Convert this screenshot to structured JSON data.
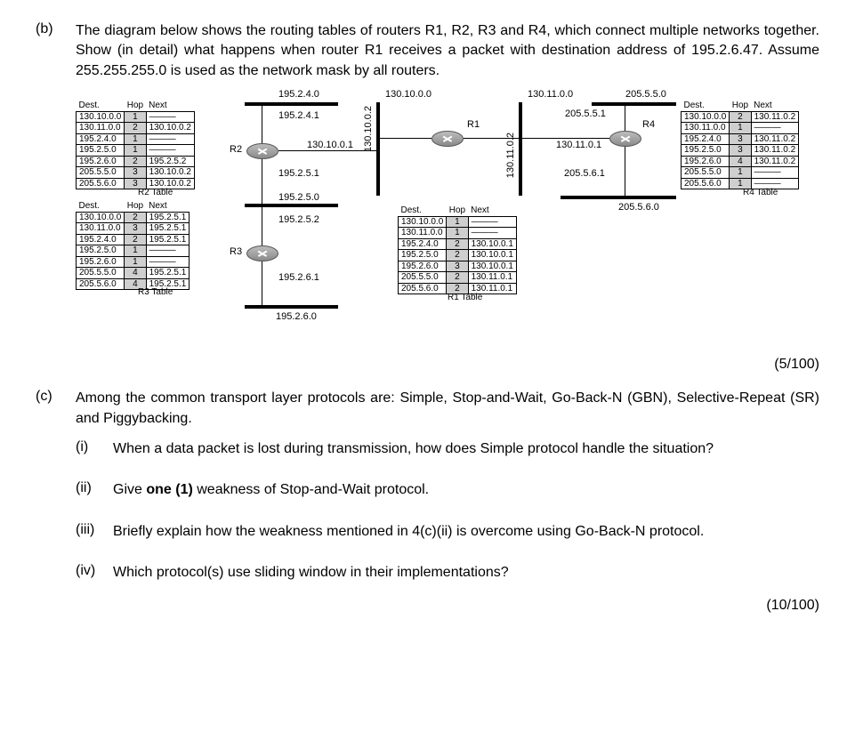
{
  "q_b": {
    "label": "(b)",
    "text": "The diagram below shows the routing tables of routers R1, R2, R3 and R4, which connect multiple networks together. Show (in detail) what happens when router R1 receives a packet with destination address of 195.2.6.47. Assume 255.255.255.0 is used as the network mask by all routers.",
    "marks": "(5/100)"
  },
  "q_c": {
    "label": "(c)",
    "intro": "Among the common transport layer protocols are: Simple, Stop-and-Wait, Go-Back-N (GBN), Selective-Repeat (SR) and Piggybacking.",
    "i": {
      "label": "(i)",
      "text": "When a data packet is lost during transmission, how does Simple protocol handle the situation?"
    },
    "ii": {
      "label": "(ii)",
      "text_pre": "Give ",
      "text_b": "one (1)",
      "text_post": " weakness of Stop-and-Wait protocol."
    },
    "iii": {
      "label": "(iii)",
      "text": "Briefly explain how the weakness mentioned in 4(c)(ii) is overcome using Go-Back-N protocol."
    },
    "iv": {
      "label": "(iv)",
      "text": "Which protocol(s) use sliding window in their implementations?"
    },
    "marks": "(10/100)"
  },
  "diagram": {
    "table_headers": {
      "dest": "Dest.",
      "hop": "Hop",
      "next": "Next"
    },
    "r2_table": {
      "caption": "R2 Table",
      "rows": [
        {
          "d": "130.10.0.0",
          "h": "1",
          "n": "———"
        },
        {
          "d": "130.11.0.0",
          "h": "2",
          "n": "130.10.0.2"
        },
        {
          "d": "195.2.4.0",
          "h": "1",
          "n": "———"
        },
        {
          "d": "195.2.5.0",
          "h": "1",
          "n": "———"
        },
        {
          "d": "195.2.6.0",
          "h": "2",
          "n": "195.2.5.2"
        },
        {
          "d": "205.5.5.0",
          "h": "3",
          "n": "130.10.0.2"
        },
        {
          "d": "205.5.6.0",
          "h": "3",
          "n": "130.10.0.2"
        }
      ]
    },
    "r3_table": {
      "caption": "R3 Table",
      "rows": [
        {
          "d": "130.10.0.0",
          "h": "2",
          "n": "195.2.5.1"
        },
        {
          "d": "130.11.0.0",
          "h": "3",
          "n": "195.2.5.1"
        },
        {
          "d": "195.2.4.0",
          "h": "2",
          "n": "195.2.5.1"
        },
        {
          "d": "195.2.5.0",
          "h": "1",
          "n": "———"
        },
        {
          "d": "195.2.6.0",
          "h": "1",
          "n": "———"
        },
        {
          "d": "205.5.5.0",
          "h": "4",
          "n": "195.2.5.1"
        },
        {
          "d": "205.5.6.0",
          "h": "4",
          "n": "195.2.5.1"
        }
      ]
    },
    "r1_table": {
      "caption": "R1 Table",
      "rows": [
        {
          "d": "130.10.0.0",
          "h": "1",
          "n": "———"
        },
        {
          "d": "130.11.0.0",
          "h": "1",
          "n": "———"
        },
        {
          "d": "195.2.4.0",
          "h": "2",
          "n": "130.10.0.1"
        },
        {
          "d": "195.2.5.0",
          "h": "2",
          "n": "130.10.0.1"
        },
        {
          "d": "195.2.6.0",
          "h": "3",
          "n": "130.10.0.1"
        },
        {
          "d": "205.5.5.0",
          "h": "2",
          "n": "130.11.0.1"
        },
        {
          "d": "205.5.6.0",
          "h": "2",
          "n": "130.11.0.1"
        }
      ]
    },
    "r4_table": {
      "caption": "R4 Table",
      "rows": [
        {
          "d": "130.10.0.0",
          "h": "2",
          "n": "130.11.0.2"
        },
        {
          "d": "130.11.0.0",
          "h": "1",
          "n": "———"
        },
        {
          "d": "195.2.4.0",
          "h": "3",
          "n": "130.11.0.2"
        },
        {
          "d": "195.2.5.0",
          "h": "3",
          "n": "130.11.0.2"
        },
        {
          "d": "195.2.6.0",
          "h": "4",
          "n": "130.11.0.2"
        },
        {
          "d": "205.5.5.0",
          "h": "1",
          "n": "———"
        },
        {
          "d": "205.5.6.0",
          "h": "1",
          "n": "———"
        }
      ]
    },
    "networks": {
      "n195_2_4_0": "195.2.4.0",
      "n195_2_5_0": "195.2.5.0",
      "n195_2_6_0": "195.2.6.0",
      "n130_10_0_0": "130.10.0.0",
      "n130_11_0_0": "130.11.0.0",
      "n205_5_5_0": "205.5.5.0",
      "n205_5_6_0": "205.5.6.0"
    },
    "interfaces": {
      "r2_up": "195.2.4.1",
      "r2_right": "130.10.0.1",
      "r2_down": "195.2.5.1",
      "r3_up": "195.2.5.2",
      "r3_down": "195.2.6.1",
      "r1_left": "130.10.0.2",
      "r1_right": "130.11.0.2",
      "r4_left": "130.11.0.1",
      "r4_up": "205.5.5.1",
      "r4_down": "205.5.6.1"
    },
    "routers": {
      "r1": "R1",
      "r2": "R2",
      "r3": "R3",
      "r4": "R4"
    }
  }
}
